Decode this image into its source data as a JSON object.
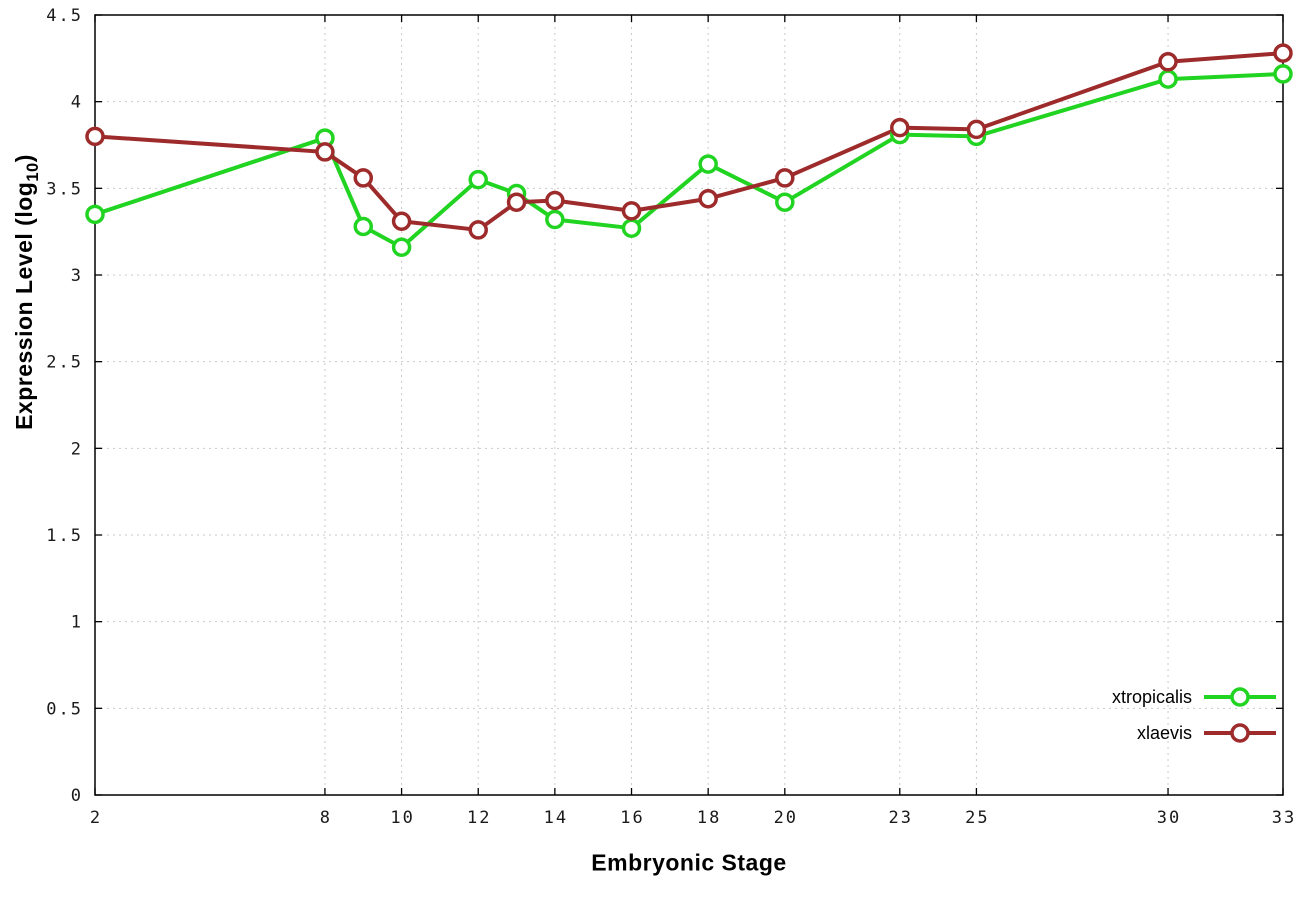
{
  "chart_data": {
    "type": "line",
    "title": "",
    "xlabel": "Embryonic Stage",
    "ylabel": "Expression Level (log10)",
    "ylabel_parts": {
      "main": "Expression Level (log",
      "sub": "10",
      "end": ")"
    },
    "xlim": [
      2,
      33
    ],
    "ylim": [
      0,
      4.5
    ],
    "x_ticks": [
      2,
      8,
      10,
      12,
      14,
      16,
      18,
      20,
      23,
      25,
      30,
      33
    ],
    "y_ticks": [
      0,
      0.5,
      1,
      1.5,
      2,
      2.5,
      3,
      3.5,
      4,
      4.5
    ],
    "grid": true,
    "legend": {
      "position": "bottom-right",
      "entries": [
        "xtropicalis",
        "xlaevis"
      ]
    },
    "x": [
      2,
      8,
      9,
      10,
      12,
      13,
      14,
      16,
      18,
      20,
      23,
      25,
      30,
      33
    ],
    "series": [
      {
        "name": "xtropicalis",
        "color": "#22d422",
        "marker": "open-circle",
        "values": [
          3.35,
          3.79,
          3.28,
          3.16,
          3.55,
          3.47,
          3.32,
          3.27,
          3.64,
          3.42,
          3.81,
          3.8,
          4.13,
          4.16
        ]
      },
      {
        "name": "xlaevis",
        "color": "#9e2b2b",
        "marker": "open-circle",
        "values": [
          3.8,
          3.71,
          3.56,
          3.31,
          3.26,
          3.42,
          3.43,
          3.37,
          3.44,
          3.56,
          3.85,
          3.84,
          4.23,
          4.28
        ]
      }
    ],
    "colors": {
      "grid": "#c9c9c9",
      "axis": "#000000",
      "tick_label": "#1a1a1a"
    }
  }
}
